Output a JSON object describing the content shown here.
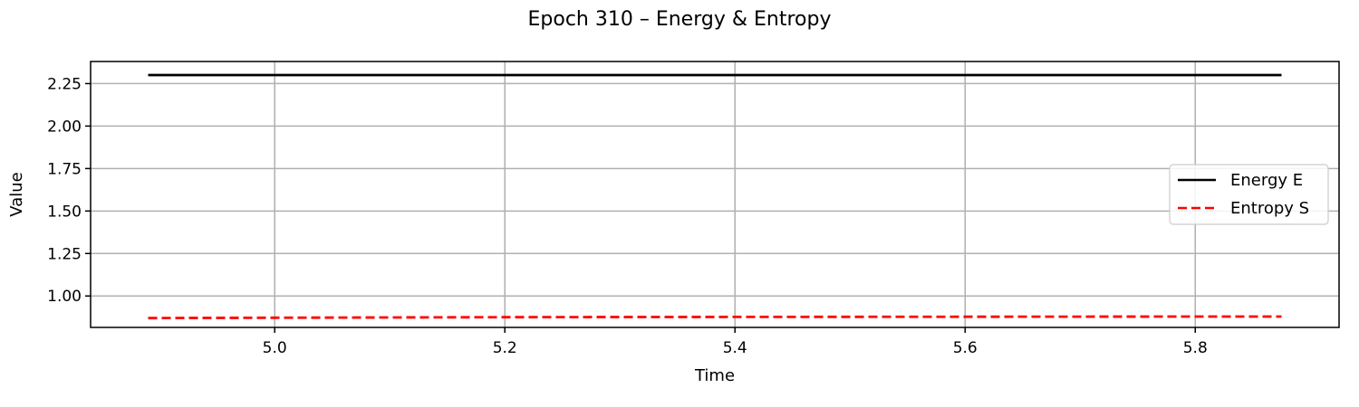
{
  "chart_data": {
    "type": "line",
    "title": "Epoch 310 – Energy & Entropy",
    "xlabel": "Time",
    "ylabel": "Value",
    "xlim": [
      4.84,
      5.925
    ],
    "ylim": [
      0.815,
      2.38
    ],
    "xticks": [
      5.0,
      5.2,
      5.4,
      5.6,
      5.8
    ],
    "xtick_labels": [
      "5.0",
      "5.2",
      "5.4",
      "5.6",
      "5.8"
    ],
    "yticks": [
      1.0,
      1.25,
      1.5,
      1.75,
      2.0,
      2.25
    ],
    "ytick_labels": [
      "1.00",
      "1.25",
      "1.50",
      "1.75",
      "2.00",
      "2.25"
    ],
    "grid": true,
    "legend_position": "center-right",
    "series": [
      {
        "name": "Energy E",
        "color": "#000000",
        "style": "solid",
        "x": [
          4.89,
          5.0,
          5.2,
          5.4,
          5.6,
          5.8,
          5.875
        ],
        "y": [
          2.3,
          2.3,
          2.3,
          2.3,
          2.3,
          2.3,
          2.3
        ]
      },
      {
        "name": "Entropy S",
        "color": "#ff0000",
        "style": "dashed",
        "x": [
          4.89,
          5.0,
          5.2,
          5.4,
          5.6,
          5.8,
          5.875
        ],
        "y": [
          0.87,
          0.872,
          0.875,
          0.877,
          0.878,
          0.879,
          0.879
        ]
      }
    ]
  }
}
